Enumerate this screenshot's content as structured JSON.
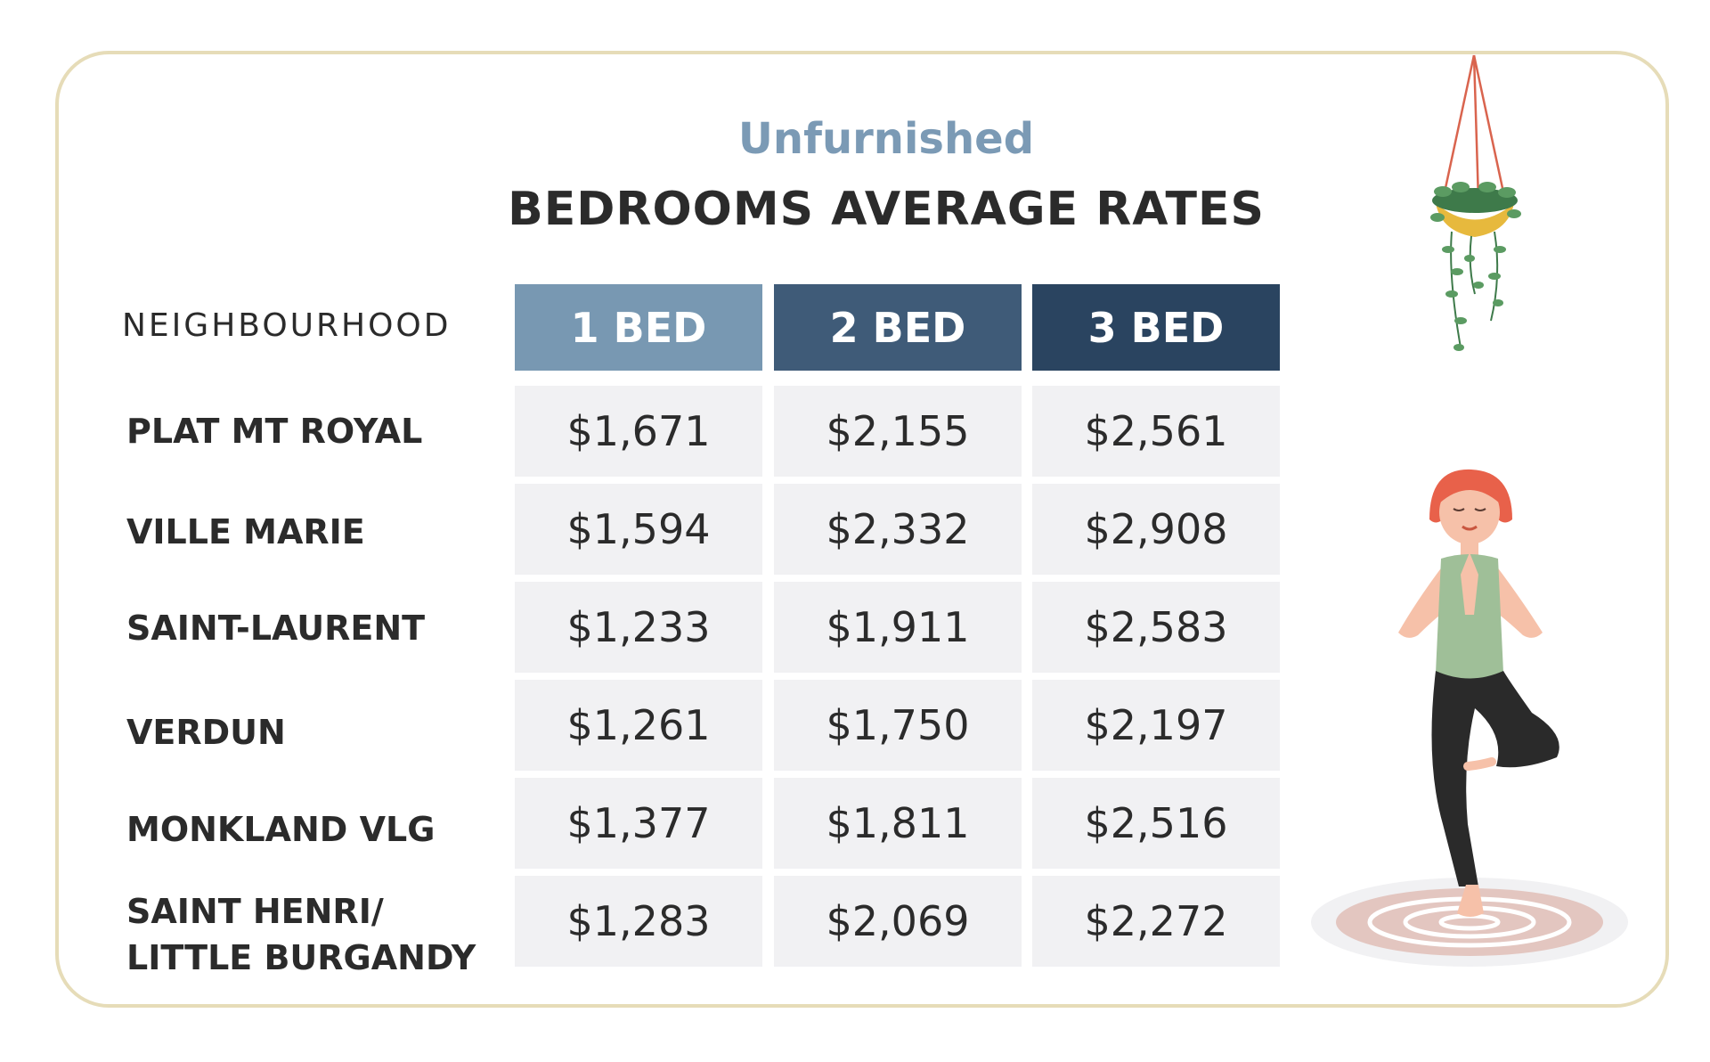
{
  "chart_data": {
    "type": "table",
    "subtitle": "Unfurnished",
    "title": "BEDROOMS AVERAGE RATES",
    "row_header": "NEIGHBOURHOOD",
    "columns": [
      {
        "label": "1 BED",
        "color": "#7898b2"
      },
      {
        "label": "2 BED",
        "color": "#3f5b78"
      },
      {
        "label": "3 BED",
        "color": "#2a4460"
      }
    ],
    "rows": [
      {
        "neighbourhood": "PLAT MT ROYAL",
        "values": [
          "$1,671",
          "$2,155",
          "$2,561"
        ]
      },
      {
        "neighbourhood": "VILLE MARIE",
        "values": [
          "$1,594",
          "$2,332",
          "$2,908"
        ]
      },
      {
        "neighbourhood": "SAINT-LAURENT",
        "values": [
          "$1,233",
          "$1,911",
          "$2,583"
        ]
      },
      {
        "neighbourhood": "VERDUN",
        "values": [
          "$1,261",
          "$1,750",
          "$2,197"
        ]
      },
      {
        "neighbourhood": "MONKLAND VLG",
        "values": [
          "$1,377",
          "$1,811",
          "$2,516"
        ]
      },
      {
        "neighbourhood": "SAINT HENRI/\nLITTLE BURGANDY",
        "values": [
          "$1,283",
          "$2,069",
          "$2,272"
        ]
      }
    ]
  },
  "illustrations": {
    "hanging_plant": "hanging-plant-icon",
    "yoga_woman": "yoga-woman-icon"
  }
}
